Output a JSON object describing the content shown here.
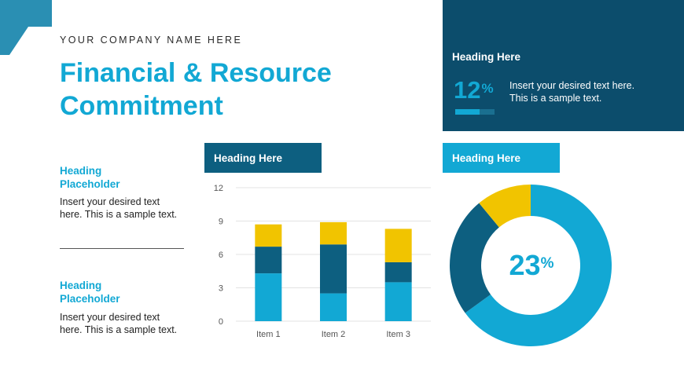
{
  "header": {
    "company": "YOUR COMPANY NAME HERE",
    "title_line1": "Financial & Resource",
    "title_line2": "Commitment"
  },
  "colors": {
    "light_blue": "#12a8d4",
    "mid_blue": "#0d5f80",
    "dark_navy": "#0c4d6c",
    "yellow": "#f1c400",
    "accent_corner": "#2a8fb3"
  },
  "left_blocks": [
    {
      "heading_line1": "Heading",
      "heading_line2": "Placeholder",
      "text_line1": "Insert your desired text",
      "text_line2": "here. This is a sample text."
    },
    {
      "heading_line1": "Heading",
      "heading_line2": "Placeholder",
      "text_line1": "Insert your desired text",
      "text_line2": "here. This is a sample text."
    }
  ],
  "top_panel": {
    "heading": "Heading Here",
    "percent_value": "12",
    "percent_sign": "%",
    "progress_fraction": 0.62,
    "text_line1": "Insert your desired text here.",
    "text_line2": "This is a sample text."
  },
  "bar_panel": {
    "heading": "Heading Here"
  },
  "donut_panel": {
    "heading": "Heading Here",
    "center_value": "23",
    "center_sign": "%"
  },
  "chart_data": [
    {
      "type": "bar",
      "stacked": true,
      "categories": [
        "Item 1",
        "Item 2",
        "Item 3"
      ],
      "series": [
        {
          "values": [
            4.3,
            2.5,
            3.5
          ],
          "color": "#12a8d4"
        },
        {
          "values": [
            2.4,
            4.4,
            1.8
          ],
          "color": "#0d5f80"
        },
        {
          "values": [
            2.0,
            2.0,
            3.0
          ],
          "color": "#f1c400"
        }
      ],
      "ylim": [
        0,
        12
      ],
      "yticks": [
        0,
        3,
        6,
        9,
        12
      ],
      "grid": true,
      "legend": "none"
    },
    {
      "type": "pie",
      "donut": true,
      "slices": [
        {
          "value": 65,
          "color": "#12a8d4"
        },
        {
          "value": 24,
          "color": "#0d5f80"
        },
        {
          "value": 11,
          "color": "#f1c400"
        }
      ]
    }
  ]
}
